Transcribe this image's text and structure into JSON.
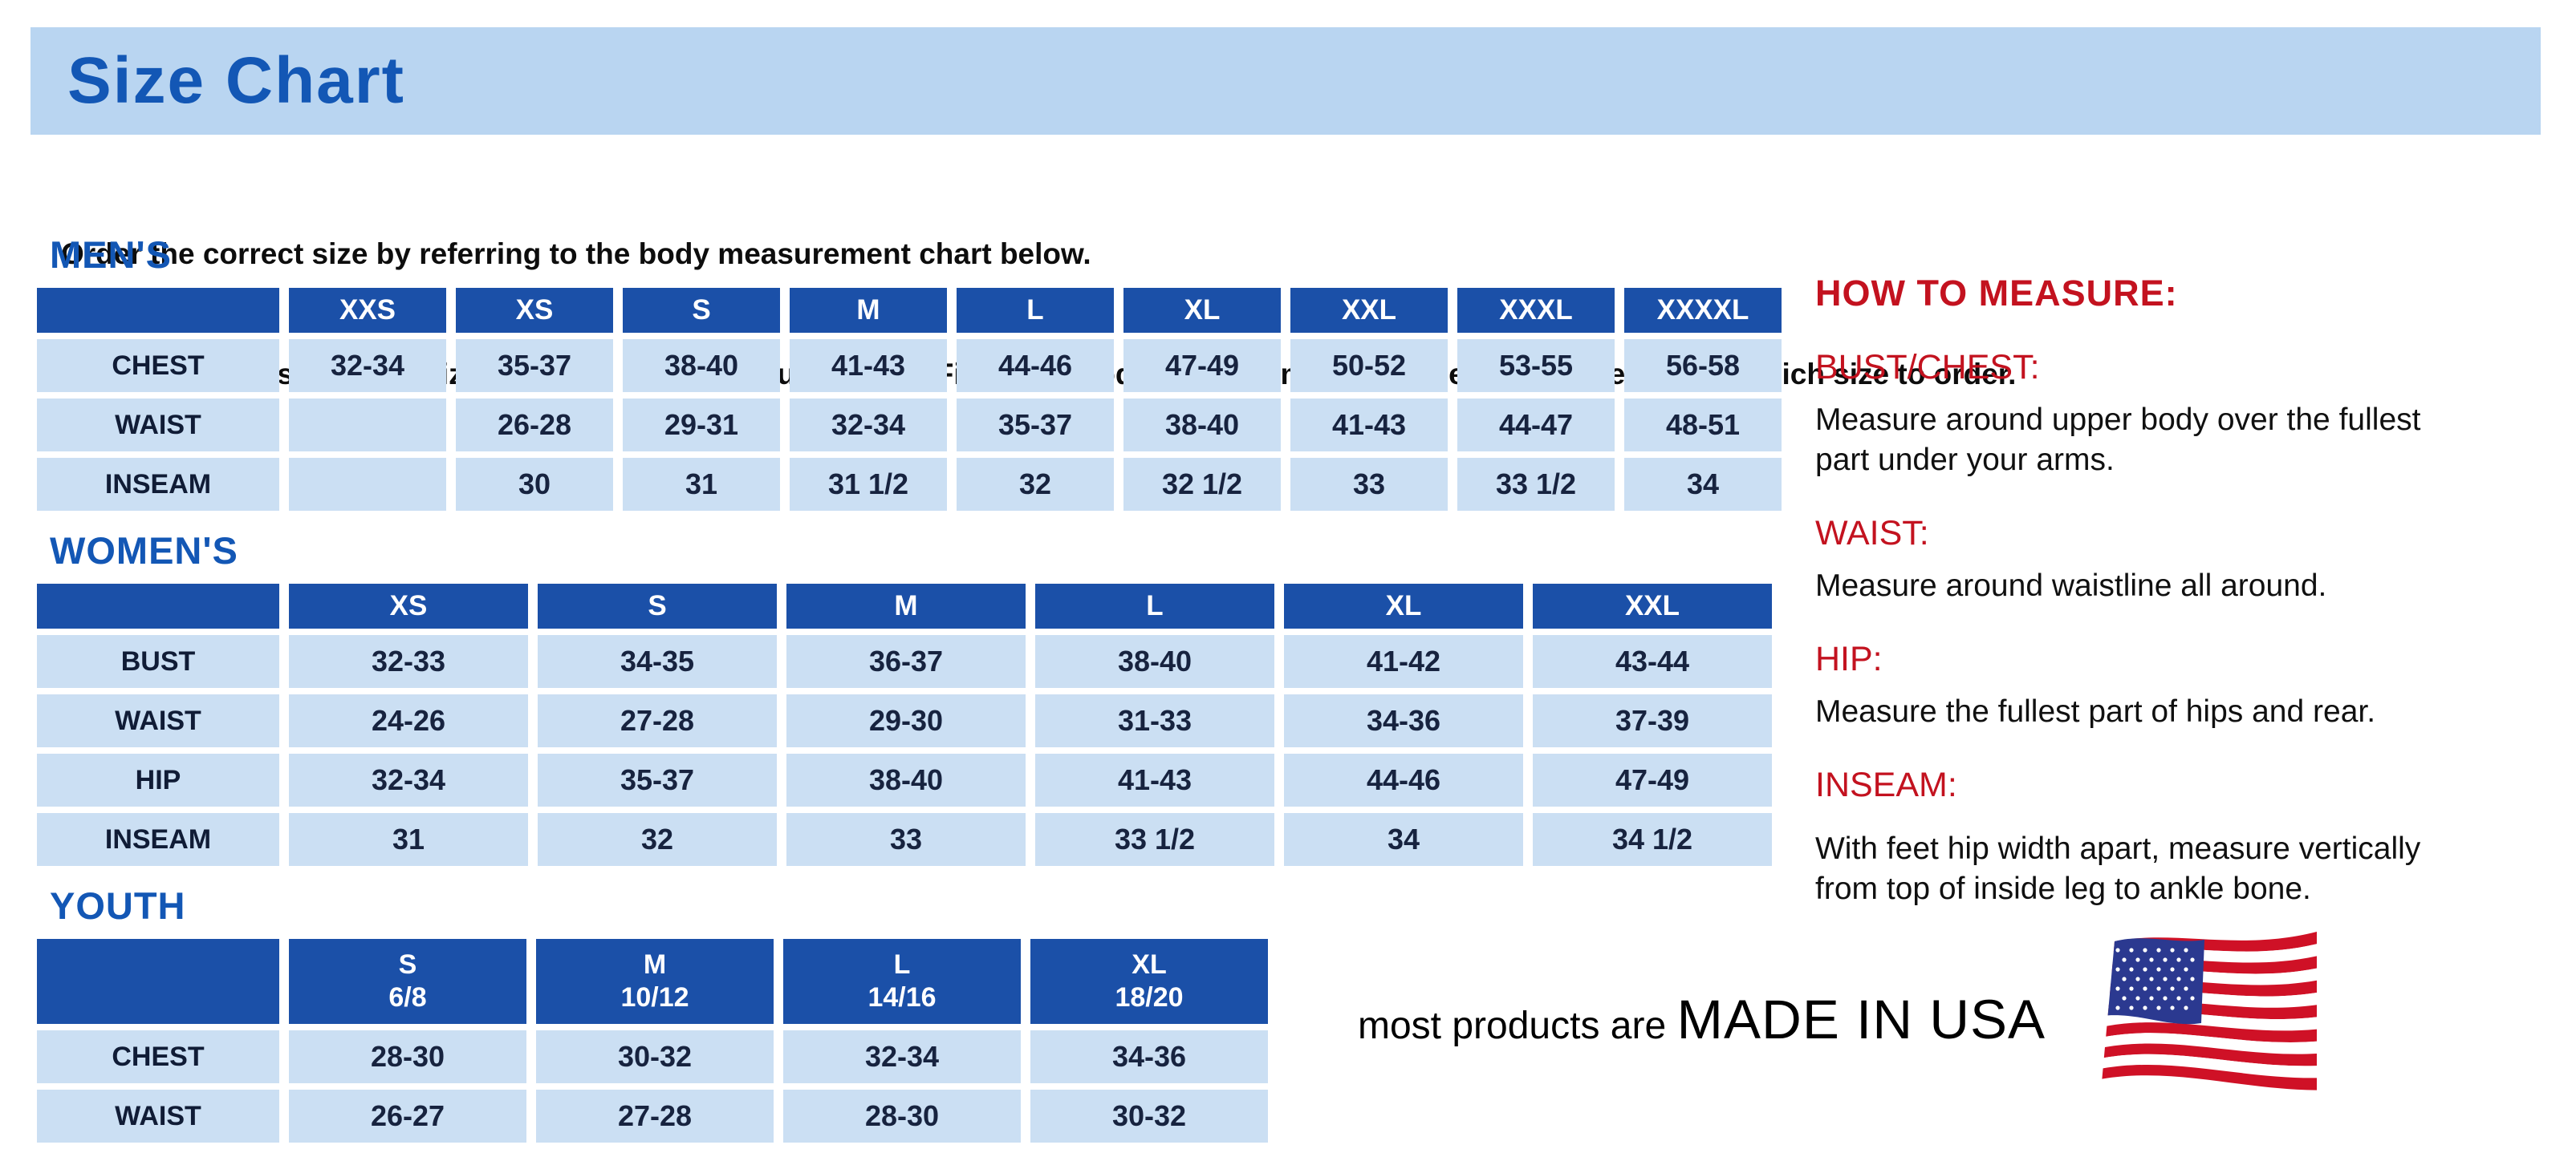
{
  "page": {
    "title": "Size Chart"
  },
  "intro": {
    "line1": "Order the correct size by referring to the body measurement chart below.",
    "line2": "Measurements shown on size chart are body measurements.  Find your body measurements on the chart to determine which size to order."
  },
  "size_tables": [
    {
      "id": "mens",
      "heading": "MEN'S",
      "columns": [
        "",
        "XXS",
        "XS",
        "S",
        "M",
        "L",
        "XL",
        "XXL",
        "XXXL",
        "XXXXL"
      ],
      "rows": [
        {
          "label": "CHEST",
          "values": [
            "32-34",
            "35-37",
            "38-40",
            "41-43",
            "44-46",
            "47-49",
            "50-52",
            "53-55",
            "56-58"
          ]
        },
        {
          "label": "WAIST",
          "values": [
            "",
            "26-28",
            "29-31",
            "32-34",
            "35-37",
            "38-40",
            "41-43",
            "44-47",
            "48-51"
          ]
        },
        {
          "label": "INSEAM",
          "values": [
            "",
            "30",
            "31",
            "31 1/2",
            "32",
            "32 1/2",
            "33",
            "33 1/2",
            "34"
          ]
        }
      ]
    },
    {
      "id": "womens",
      "heading": "WOMEN'S",
      "columns": [
        "",
        "XS",
        "S",
        "M",
        "L",
        "XL",
        "XXL"
      ],
      "rows": [
        {
          "label": "BUST",
          "values": [
            "32-33",
            "34-35",
            "36-37",
            "38-40",
            "41-42",
            "43-44"
          ]
        },
        {
          "label": "WAIST",
          "values": [
            "24-26",
            "27-28",
            "29-30",
            "31-33",
            "34-36",
            "37-39"
          ]
        },
        {
          "label": "HIP",
          "values": [
            "32-34",
            "35-37",
            "38-40",
            "41-43",
            "44-46",
            "47-49"
          ]
        },
        {
          "label": "INSEAM",
          "values": [
            "31",
            "32",
            "33",
            "33 1/2",
            "34",
            "34 1/2"
          ]
        }
      ]
    },
    {
      "id": "youth",
      "heading": "YOUTH",
      "columns": [
        "",
        "S\n6/8",
        "M\n10/12",
        "L\n14/16",
        "XL\n18/20"
      ],
      "rows": [
        {
          "label": "CHEST",
          "values": [
            "28-30",
            "30-32",
            "32-34",
            "34-36"
          ]
        },
        {
          "label": "WAIST",
          "values": [
            "26-27",
            "27-28",
            "28-30",
            "30-32"
          ]
        }
      ]
    }
  ],
  "how_to_measure": {
    "heading": "HOW TO MEASURE:",
    "sections": [
      {
        "label": "BUST/CHEST:",
        "text": "Measure around upper body over the fullest part under your arms."
      },
      {
        "label": "WAIST:",
        "text": "Measure around waistline all around."
      },
      {
        "label": "HIP:",
        "text": "Measure the fullest part of hips and rear."
      },
      {
        "label": "INSEAM:",
        "text": "With feet hip width apart, measure vertically from top of inside leg to ankle bone."
      }
    ]
  },
  "footer": {
    "prefix": "most products are",
    "emphasis": "MADE IN USA",
    "flag_icon": "usa-flag"
  },
  "colors": {
    "band_bg": "#b9d5f1",
    "heading_blue": "#1357b5",
    "table_header_bg": "#1b50a8",
    "table_cell_bg": "#cbdff3",
    "table_text": "#17233f",
    "accent_red": "#c3121f",
    "text_black": "#111111",
    "flag_red": "#cf1126",
    "flag_blue": "#2b3990",
    "flag_white": "#ffffff"
  }
}
